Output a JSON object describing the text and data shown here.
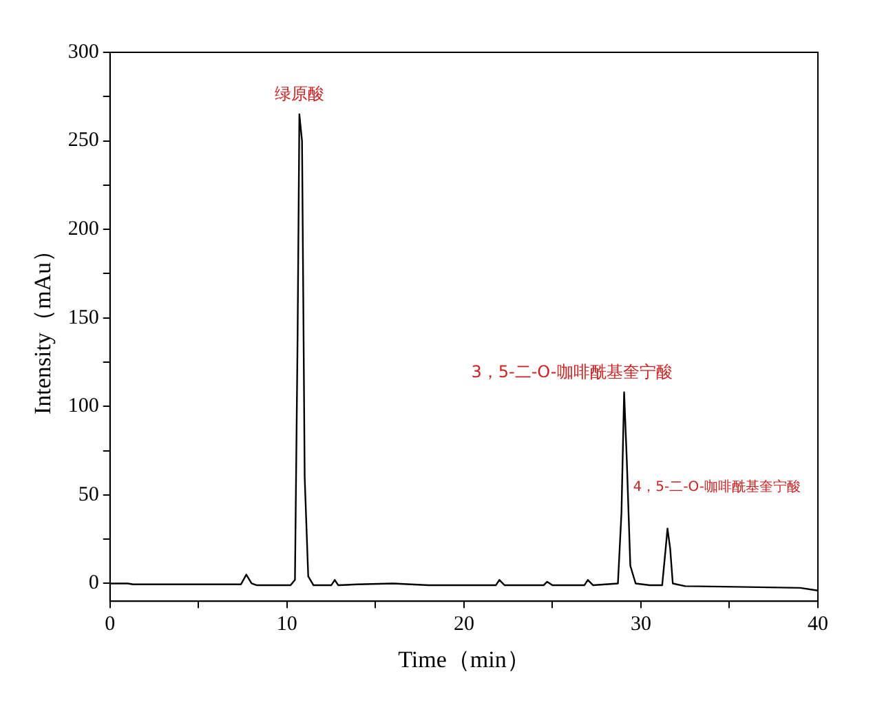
{
  "chart_data": {
    "type": "line",
    "xlabel": "Time（min）",
    "ylabel": "Intensity（mAu）",
    "x": [
      0,
      1,
      1.3,
      5,
      7.4,
      7.7,
      8,
      8.3,
      10.2,
      10.45,
      10.6,
      10.7,
      10.85,
      11.0,
      11.2,
      11.5,
      12.5,
      12.7,
      12.9,
      14,
      16,
      18,
      21.8,
      22,
      22.3,
      24.5,
      24.7,
      25,
      26.8,
      27,
      27.3,
      28.7,
      28.9,
      29.05,
      29.2,
      29.4,
      29.7,
      30.5,
      31.2,
      31.4,
      31.5,
      31.65,
      31.8,
      32.5,
      36,
      39,
      40
    ],
    "series": [
      {
        "color": "#000000",
        "values": [
          0,
          0,
          -0.5,
          -0.5,
          -0.5,
          5,
          0,
          -1,
          -1,
          2,
          140,
          265,
          250,
          60,
          4,
          -1,
          -1,
          2,
          -1,
          -0.5,
          0,
          -1,
          -1,
          2,
          -1,
          -1,
          1,
          -1,
          -1,
          2,
          -1,
          0,
          40,
          108,
          70,
          10,
          0,
          -1,
          -1,
          20,
          31,
          20,
          0,
          -1.5,
          -2,
          -2.5,
          -4
        ]
      }
    ],
    "xlim": [
      0,
      40
    ],
    "xticks": [
      0,
      {
        "value": 5,
        "label": null
      },
      10,
      {
        "value": 15,
        "label": null
      },
      20,
      {
        "value": 25,
        "label": null
      },
      30,
      {
        "value": 35,
        "label": null
      },
      40
    ],
    "ylim": [
      -10,
      300
    ],
    "yticks": [
      0,
      {
        "value": 25,
        "label": null
      },
      50,
      {
        "value": 75,
        "label": null
      },
      100,
      {
        "value": 125,
        "label": null
      },
      150,
      {
        "value": 175,
        "label": null
      },
      200,
      {
        "value": 225,
        "label": null
      },
      250,
      {
        "value": 275,
        "label": null
      },
      300
    ],
    "annotations": [
      {
        "text": "绿原酸",
        "x": 10.7,
        "y": 265
      },
      {
        "text": "3，5-二-O-咖啡酰基奎宁酸",
        "x": 29.05,
        "y": 108
      },
      {
        "text": "4，5-二-O-咖啡酰基奎宁酸",
        "x": 31.5,
        "y": 31
      }
    ]
  }
}
